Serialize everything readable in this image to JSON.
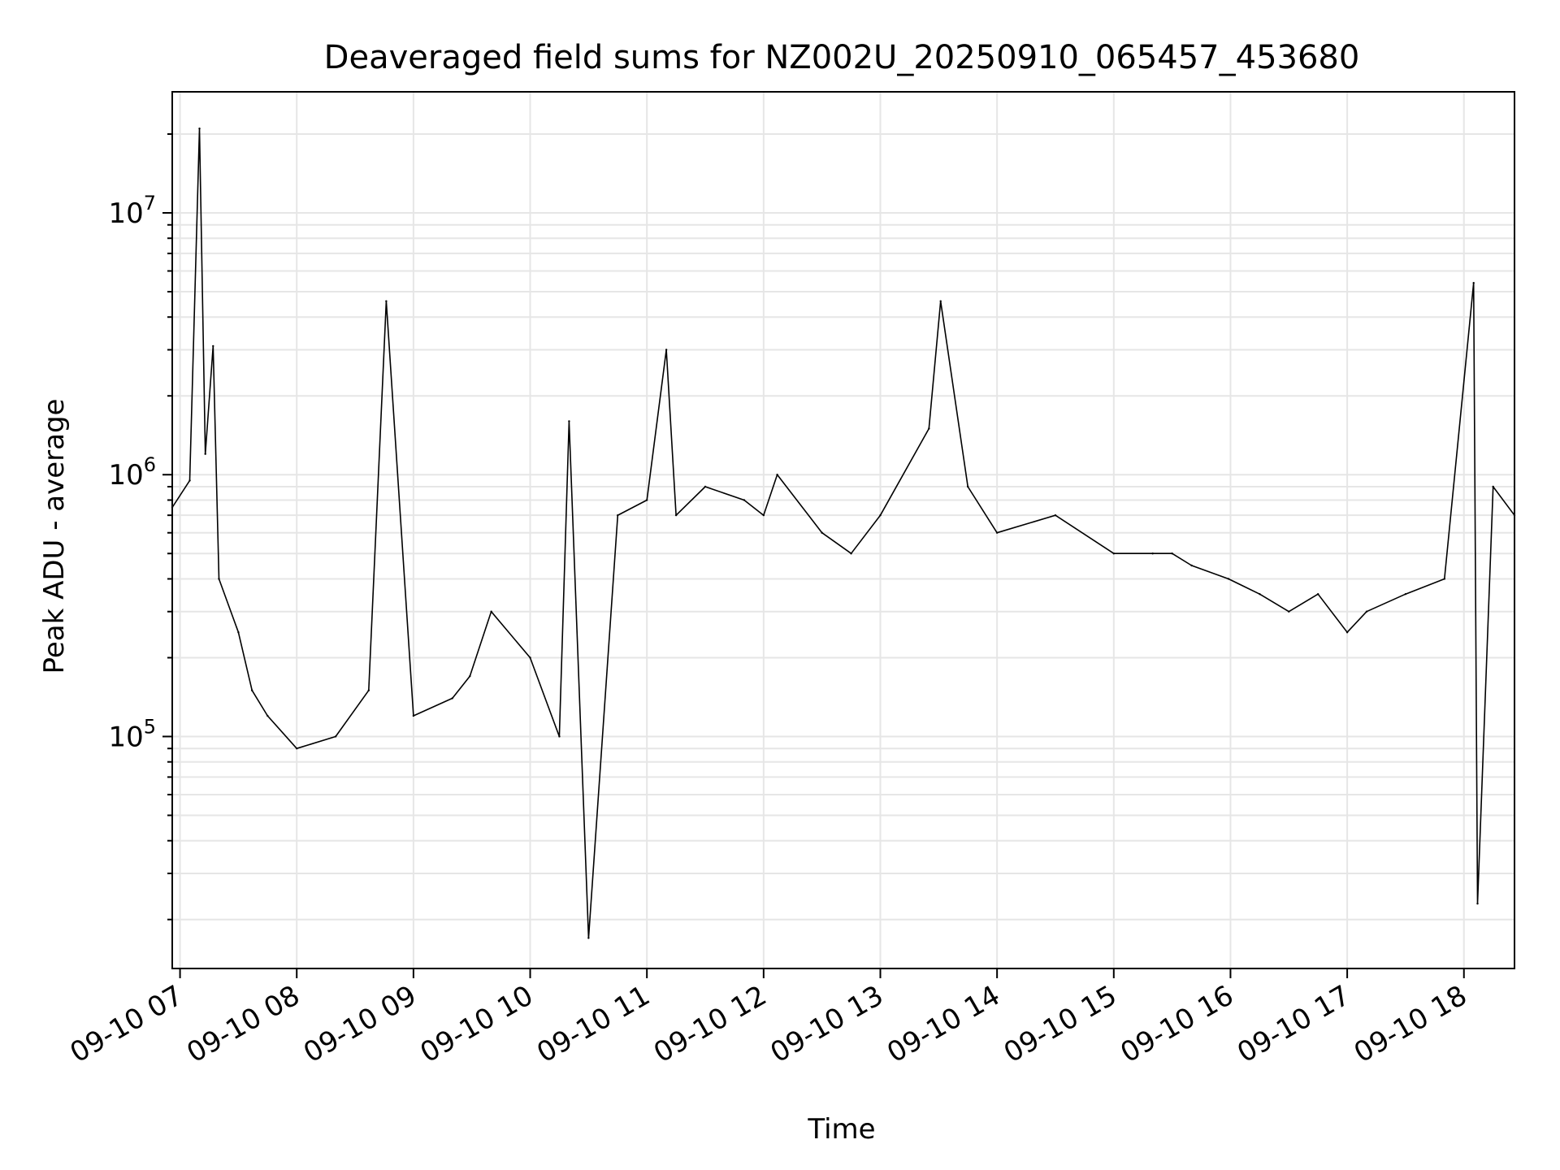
{
  "chart_data": {
    "type": "line",
    "title": "Deaveraged field sums for NZ002U_20250910_065457_453680",
    "xlabel": "Time",
    "ylabel": "Peak ADU - average",
    "yscale": "log",
    "xlim": [
      "2025-09-10 06:56",
      "2025-09-10 18:26"
    ],
    "ylim": [
      13000,
      29000000
    ],
    "grid": true,
    "grid_color": "#e6e6e6",
    "line_color": "#000000",
    "x_ticks": [
      {
        "value": "2025-09-10 07:00",
        "label": "09-10 07"
      },
      {
        "value": "2025-09-10 08:00",
        "label": "09-10 08"
      },
      {
        "value": "2025-09-10 09:00",
        "label": "09-10 09"
      },
      {
        "value": "2025-09-10 10:00",
        "label": "09-10 10"
      },
      {
        "value": "2025-09-10 11:00",
        "label": "09-10 11"
      },
      {
        "value": "2025-09-10 12:00",
        "label": "09-10 12"
      },
      {
        "value": "2025-09-10 13:00",
        "label": "09-10 13"
      },
      {
        "value": "2025-09-10 14:00",
        "label": "09-10 14"
      },
      {
        "value": "2025-09-10 15:00",
        "label": "09-10 15"
      },
      {
        "value": "2025-09-10 16:00",
        "label": "09-10 16"
      },
      {
        "value": "2025-09-10 17:00",
        "label": "09-10 17"
      },
      {
        "value": "2025-09-10 18:00",
        "label": "09-10 18"
      }
    ],
    "y_ticks": [
      {
        "value": 100000,
        "base": "10",
        "exp": "5"
      },
      {
        "value": 1000000,
        "base": "10",
        "exp": "6"
      },
      {
        "value": 10000000,
        "base": "10",
        "exp": "7"
      }
    ],
    "series": [
      {
        "x": [
          "2025-09-10 06:56",
          "2025-09-10 07:05",
          "2025-09-10 07:10",
          "2025-09-10 07:13",
          "2025-09-10 07:17",
          "2025-09-10 07:20",
          "2025-09-10 07:30",
          "2025-09-10 07:37",
          "2025-09-10 07:45",
          "2025-09-10 08:00",
          "2025-09-10 08:20",
          "2025-09-10 08:37",
          "2025-09-10 08:46",
          "2025-09-10 09:00",
          "2025-09-10 09:20",
          "2025-09-10 09:29",
          "2025-09-10 09:40",
          "2025-09-10 10:00",
          "2025-09-10 10:15",
          "2025-09-10 10:20",
          "2025-09-10 10:30",
          "2025-09-10 10:45",
          "2025-09-10 11:00",
          "2025-09-10 11:10",
          "2025-09-10 11:15",
          "2025-09-10 11:30",
          "2025-09-10 11:50",
          "2025-09-10 12:00",
          "2025-09-10 12:07",
          "2025-09-10 12:30",
          "2025-09-10 12:45",
          "2025-09-10 13:00",
          "2025-09-10 13:25",
          "2025-09-10 13:31",
          "2025-09-10 13:45",
          "2025-09-10 14:00",
          "2025-09-10 14:30",
          "2025-09-10 15:00",
          "2025-09-10 15:20",
          "2025-09-10 15:30",
          "2025-09-10 15:40",
          "2025-09-10 15:59",
          "2025-09-10 16:15",
          "2025-09-10 16:30",
          "2025-09-10 16:45",
          "2025-09-10 17:00",
          "2025-09-10 17:10",
          "2025-09-10 17:30",
          "2025-09-10 17:50",
          "2025-09-10 18:05",
          "2025-09-10 18:07",
          "2025-09-10 18:15",
          "2025-09-10 18:26"
        ],
        "y": [
          750000,
          950000,
          21000000,
          1200000,
          3100000,
          400000,
          250000,
          150000,
          120000,
          90000,
          100000,
          150000,
          4600000,
          120000,
          140000,
          170000,
          300000,
          200000,
          100000,
          1600000,
          17000,
          700000,
          800000,
          3000000,
          700000,
          900000,
          800000,
          700000,
          1000000,
          600000,
          500000,
          700000,
          1500000,
          4600000,
          900000,
          600000,
          700000,
          500000,
          500000,
          500000,
          450000,
          400000,
          350000,
          300000,
          350000,
          250000,
          300000,
          350000,
          400000,
          5400000,
          23000,
          900000,
          700000
        ]
      }
    ]
  }
}
